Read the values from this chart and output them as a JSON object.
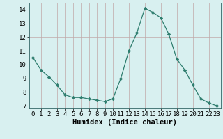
{
  "x": [
    0,
    1,
    2,
    3,
    4,
    5,
    6,
    7,
    8,
    9,
    10,
    11,
    12,
    13,
    14,
    15,
    16,
    17,
    18,
    19,
    20,
    21,
    22,
    23
  ],
  "y": [
    10.5,
    9.6,
    9.1,
    8.5,
    7.8,
    7.6,
    7.6,
    7.5,
    7.4,
    7.3,
    7.5,
    9.0,
    11.0,
    12.3,
    14.1,
    13.8,
    13.4,
    12.2,
    10.4,
    9.6,
    8.5,
    7.5,
    7.2,
    7.0
  ],
  "line_color": "#2e7d6e",
  "marker": "D",
  "marker_size": 2.2,
  "bg_color": "#d8f0f0",
  "grid_color": "#c0a8a8",
  "xlabel": "Humidex (Indice chaleur)",
  "xlabel_fontsize": 7.5,
  "ylim": [
    6.8,
    14.5
  ],
  "xlim": [
    -0.5,
    23.5
  ],
  "yticks": [
    7,
    8,
    9,
    10,
    11,
    12,
    13,
    14
  ],
  "xticks": [
    0,
    1,
    2,
    3,
    4,
    5,
    6,
    7,
    8,
    9,
    10,
    11,
    12,
    13,
    14,
    15,
    16,
    17,
    18,
    19,
    20,
    21,
    22,
    23
  ],
  "tick_fontsize": 6.5
}
